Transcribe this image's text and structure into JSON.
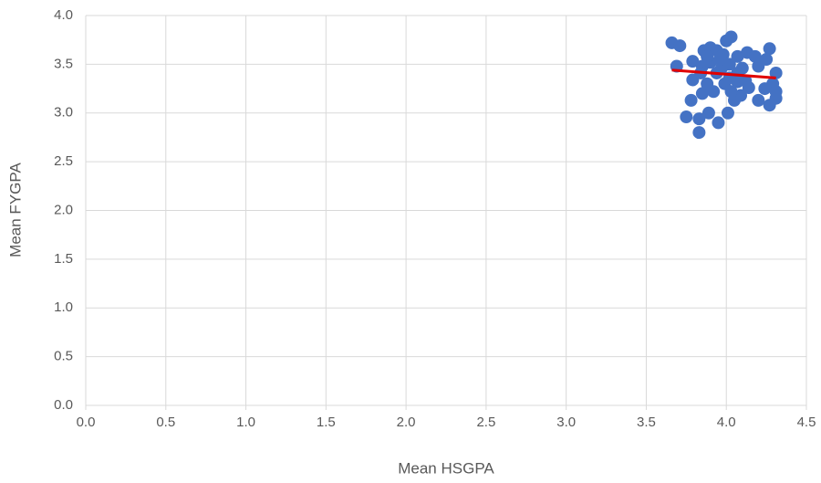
{
  "chart_data": {
    "type": "scatter",
    "xlabel": "Mean HSGPA",
    "ylabel": "Mean FYGPA",
    "xlim": [
      0,
      4.5
    ],
    "ylim": [
      0,
      4
    ],
    "xticks": [
      {
        "value": 0,
        "label": "0.0"
      },
      0.5,
      {
        "value": 1,
        "label": "1.0"
      },
      1.5,
      {
        "value": 2,
        "label": "2.0"
      },
      2.5,
      {
        "value": 3,
        "label": "3.0"
      },
      3.5,
      {
        "value": 4,
        "label": "4.0"
      },
      4.5
    ],
    "yticks": [
      {
        "value": 0,
        "label": "0.0"
      },
      0.5,
      {
        "value": 1,
        "label": "1.0"
      },
      1.5,
      {
        "value": 2,
        "label": "2.0"
      },
      2.5,
      {
        "value": 3,
        "label": "3.0"
      },
      3.5,
      {
        "value": 4,
        "label": "4.0"
      }
    ],
    "grid": true,
    "color": "#4472c4",
    "x": [
      3.66,
      3.71,
      3.69,
      3.75,
      3.78,
      3.83,
      3.83,
      3.85,
      3.89,
      3.95,
      4.01,
      3.79,
      3.79,
      3.86,
      3.9,
      3.94,
      4.0,
      4.03,
      3.98,
      3.9,
      3.85,
      3.84,
      3.94,
      3.97,
      4.02,
      4.07,
      4.1,
      4.13,
      4.18,
      4.2,
      4.25,
      4.27,
      4.31,
      4.29,
      4.31,
      4.31,
      4.27,
      4.2,
      4.24,
      4.09,
      4.05,
      4.03,
      4.07,
      3.99,
      3.92,
      4.07,
      4.12,
      4.14,
      3.88,
      4.02,
      3.96,
      3.88
    ],
    "y": [
      3.72,
      3.69,
      3.48,
      2.96,
      3.13,
      2.8,
      2.94,
      3.2,
      3.0,
      2.9,
      3.0,
      3.34,
      3.53,
      3.64,
      3.67,
      3.64,
      3.74,
      3.78,
      3.6,
      3.52,
      3.48,
      3.41,
      3.41,
      3.46,
      3.5,
      3.58,
      3.46,
      3.62,
      3.58,
      3.48,
      3.55,
      3.66,
      3.41,
      3.3,
      3.22,
      3.15,
      3.08,
      3.13,
      3.25,
      3.18,
      3.13,
      3.22,
      3.32,
      3.3,
      3.22,
      3.41,
      3.33,
      3.26,
      3.3,
      3.36,
      3.55,
      3.58
    ],
    "trendline": {
      "x": [
        3.66,
        4.31
      ],
      "y": [
        3.44,
        3.36
      ],
      "color": "#e00000"
    }
  }
}
